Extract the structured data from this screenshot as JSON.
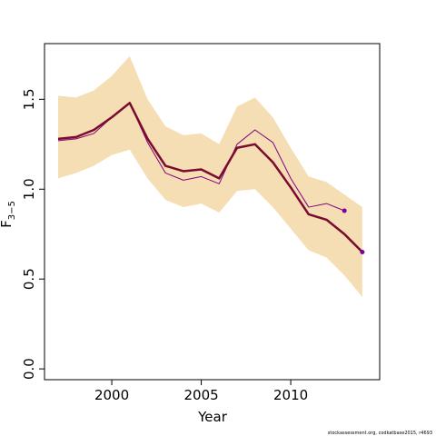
{
  "chart_data": {
    "type": "line",
    "xlabel": "Year",
    "ylabel": "F",
    "ylabel_subscript": "3−5",
    "footnote": "stockassessment.org, codkatbase2015, r4693",
    "x": [
      1997,
      1998,
      1999,
      2000,
      2001,
      2002,
      2003,
      2004,
      2005,
      2006,
      2007,
      2008,
      2009,
      2010,
      2011,
      2012,
      2013,
      2014
    ],
    "band": {
      "color": "#f5deb3",
      "upper": [
        1.52,
        1.51,
        1.55,
        1.63,
        1.74,
        1.5,
        1.35,
        1.3,
        1.31,
        1.25,
        1.46,
        1.51,
        1.4,
        1.23,
        1.07,
        1.04,
        0.97,
        0.9
      ],
      "lower": [
        1.06,
        1.09,
        1.13,
        1.19,
        1.22,
        1.06,
        0.94,
        0.9,
        0.92,
        0.87,
        0.99,
        1.0,
        0.9,
        0.78,
        0.66,
        0.62,
        0.52,
        0.4
      ]
    },
    "series": [
      {
        "color": "#800080",
        "width": 1,
        "values": [
          1.27,
          1.28,
          1.31,
          1.4,
          1.48,
          1.26,
          1.09,
          1.05,
          1.07,
          1.03,
          1.25,
          1.33,
          1.26,
          1.06,
          0.9,
          0.92,
          0.88,
          null
        ]
      },
      {
        "color": "#7a0b2e",
        "width": 2.5,
        "values": [
          1.28,
          1.29,
          1.33,
          1.4,
          1.48,
          1.28,
          1.13,
          1.1,
          1.11,
          1.06,
          1.23,
          1.25,
          1.15,
          1.01,
          0.86,
          0.83,
          0.75,
          0.65
        ]
      }
    ],
    "end_point_color": "#7a00a0",
    "xlim": [
      1996.24,
      2014.97
    ],
    "ylim": [
      -0.06,
      1.81
    ],
    "xticks": [
      2000,
      2005,
      2010
    ],
    "yticks": [
      {
        "value": 0,
        "label": "0.0"
      },
      0.5,
      {
        "value": 1,
        "label": "1.0"
      },
      1.5
    ]
  }
}
